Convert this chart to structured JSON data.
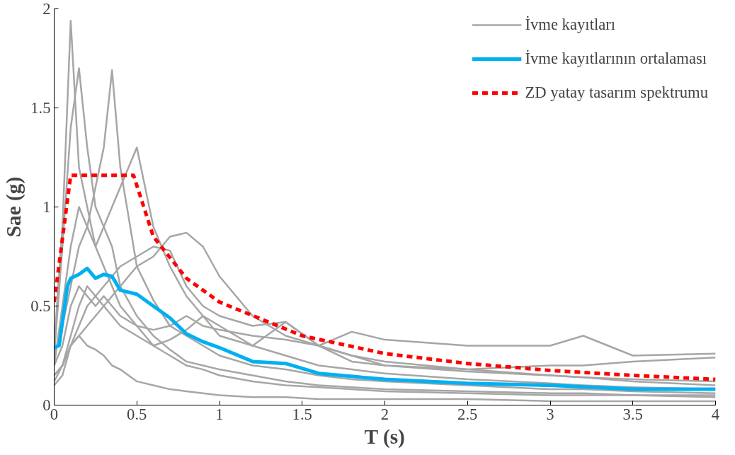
{
  "chart_data": {
    "type": "line",
    "xlabel": "T (s)",
    "ylabel": "Sae (g)",
    "x": [
      0,
      0.05,
      0.1,
      0.15,
      0.2,
      0.25,
      0.3,
      0.35,
      0.4,
      0.5,
      0.6,
      0.7,
      0.8,
      0.9,
      1.0,
      1.2,
      1.4,
      1.6,
      1.8,
      2.0,
      2.5,
      3.0,
      3.2,
      3.5,
      4.0
    ],
    "xlim": [
      0,
      4
    ],
    "ylim": [
      0,
      2
    ],
    "xticks": [
      0,
      0.5,
      1,
      1.5,
      2,
      2.5,
      3,
      3.5,
      4
    ],
    "yticks": [
      0,
      0.5,
      1,
      1.5,
      2
    ],
    "grid": false,
    "legend": "top right",
    "marker": "none",
    "series": [
      {
        "name": "İvme kayıtları",
        "color": "#a6a6a6",
        "values": [
          0.3,
          0.9,
          1.94,
          1.2,
          1.0,
          0.8,
          0.7,
          0.6,
          0.5,
          0.4,
          0.3,
          0.25,
          0.2,
          0.18,
          0.15,
          0.12,
          0.1,
          0.09,
          0.08,
          0.07,
          0.06,
          0.05,
          0.05,
          0.05,
          0.04
        ]
      },
      {
        "color": "#a6a6a6",
        "values": [
          0.2,
          0.5,
          0.8,
          1.0,
          0.9,
          1.1,
          1.3,
          1.69,
          1.2,
          0.7,
          0.53,
          0.4,
          0.35,
          0.3,
          0.25,
          0.2,
          0.18,
          0.15,
          0.13,
          0.12,
          0.1,
          0.08,
          0.08,
          0.07,
          0.06
        ]
      },
      {
        "color": "#a6a6a6",
        "values": [
          0.25,
          0.4,
          0.6,
          0.8,
          0.9,
          0.8,
          0.9,
          1.0,
          1.1,
          1.3,
          0.9,
          0.7,
          0.55,
          0.45,
          0.4,
          0.3,
          0.25,
          0.2,
          0.18,
          0.16,
          0.13,
          0.11,
          0.1,
          0.09,
          0.08
        ]
      },
      {
        "color": "#a6a6a6",
        "values": [
          0.15,
          0.2,
          0.3,
          0.35,
          0.4,
          0.45,
          0.5,
          0.55,
          0.6,
          0.7,
          0.75,
          0.85,
          0.87,
          0.8,
          0.65,
          0.45,
          0.35,
          0.3,
          0.25,
          0.22,
          0.18,
          0.15,
          0.14,
          0.13,
          0.12
        ]
      },
      {
        "color": "#a6a6a6",
        "values": [
          0.2,
          0.3,
          0.5,
          0.6,
          0.55,
          0.5,
          0.55,
          0.5,
          0.45,
          0.4,
          0.38,
          0.4,
          0.45,
          0.4,
          0.38,
          0.35,
          0.33,
          0.3,
          0.37,
          0.33,
          0.3,
          0.3,
          0.35,
          0.25,
          0.26
        ]
      },
      {
        "color": "#a6a6a6",
        "values": [
          0.25,
          0.8,
          1.4,
          1.7,
          1.3,
          1.0,
          0.9,
          0.8,
          0.6,
          0.45,
          0.35,
          0.28,
          0.22,
          0.2,
          0.18,
          0.15,
          0.12,
          0.1,
          0.09,
          0.08,
          0.07,
          0.06,
          0.06,
          0.05,
          0.05
        ]
      },
      {
        "color": "#a6a6a6",
        "values": [
          0.1,
          0.15,
          0.3,
          0.35,
          0.3,
          0.28,
          0.25,
          0.2,
          0.18,
          0.12,
          0.1,
          0.08,
          0.07,
          0.06,
          0.05,
          0.04,
          0.04,
          0.03,
          0.03,
          0.03,
          0.03,
          0.02,
          0.02,
          0.02,
          0.02
        ]
      },
      {
        "color": "#a6a6a6",
        "values": [
          0.15,
          0.2,
          0.3,
          0.4,
          0.5,
          0.55,
          0.6,
          0.65,
          0.7,
          0.75,
          0.8,
          0.78,
          0.6,
          0.5,
          0.45,
          0.4,
          0.42,
          0.3,
          0.25,
          0.2,
          0.18,
          0.2,
          0.2,
          0.22,
          0.24
        ]
      },
      {
        "color": "#a6a6a6",
        "values": [
          0.12,
          0.2,
          0.35,
          0.5,
          0.6,
          0.55,
          0.5,
          0.45,
          0.4,
          0.35,
          0.3,
          0.33,
          0.38,
          0.45,
          0.35,
          0.3,
          0.42,
          0.3,
          0.22,
          0.2,
          0.17,
          0.15,
          0.14,
          0.12,
          0.1
        ]
      },
      {
        "name": "İvme kayıtlarının ortalaması",
        "color": "#00b0f0",
        "x": [
          0,
          0.03,
          0.08,
          0.1,
          0.15,
          0.2,
          0.25,
          0.3,
          0.35,
          0.4,
          0.5,
          0.6,
          0.7,
          0.8,
          0.9,
          1.0,
          1.2,
          1.4,
          1.6,
          2.0,
          2.5,
          3.0,
          3.5,
          4.0
        ],
        "values": [
          0.29,
          0.3,
          0.6,
          0.64,
          0.66,
          0.69,
          0.64,
          0.66,
          0.65,
          0.58,
          0.56,
          0.5,
          0.44,
          0.36,
          0.32,
          0.29,
          0.22,
          0.21,
          0.16,
          0.13,
          0.11,
          0.1,
          0.08,
          0.08
        ]
      },
      {
        "name": "ZD yatay tasarım spektrumu",
        "color": "#ff0000",
        "line_style": "dashed",
        "x": [
          0,
          0.1,
          0.48,
          0.6,
          0.8,
          1.0,
          1.5,
          2,
          2.5,
          3,
          3.5,
          4
        ],
        "values": [
          0.52,
          1.16,
          1.16,
          0.85,
          0.64,
          0.52,
          0.35,
          0.26,
          0.21,
          0.175,
          0.15,
          0.13
        ]
      }
    ]
  }
}
